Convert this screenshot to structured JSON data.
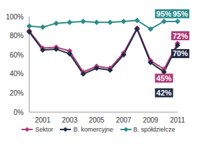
{
  "chart_data": {
    "type": "line",
    "categories": [
      null,
      "2001",
      null,
      "2003",
      null,
      "2005",
      null,
      "2007",
      null,
      "2009",
      null,
      "2011"
    ],
    "ylim": [
      0,
      100
    ],
    "yticks": [
      {
        "value": 0,
        "label": "0%"
      },
      {
        "value": 20,
        "label": "20%"
      },
      {
        "value": 40,
        "label": "40%"
      },
      {
        "value": 60,
        "label": "60%"
      },
      {
        "value": 80,
        "label": "80%"
      },
      {
        "value": 100,
        "label": "100%"
      }
    ],
    "grid": false,
    "legend": "bottom",
    "marker": "diamond",
    "series": [
      {
        "name": "Sektor",
        "color": "#b03a78",
        "values": [
          85,
          67,
          68,
          64,
          42,
          48,
          46,
          62,
          88,
          54,
          45,
          72
        ],
        "value_labels": [
          null,
          null,
          null,
          null,
          null,
          null,
          null,
          null,
          null,
          null,
          "45%",
          "72%"
        ]
      },
      {
        "name": "B. komercyjne",
        "color": "#1f2a44",
        "values": [
          84,
          65,
          66,
          61,
          40,
          46,
          44,
          60,
          87,
          52,
          42,
          70
        ],
        "value_labels": [
          null,
          null,
          null,
          null,
          null,
          null,
          null,
          null,
          null,
          null,
          "42%",
          "70%"
        ]
      },
      {
        "name": "B. spółdzielcze",
        "color": "#2a8c8c",
        "values": [
          90,
          89,
          93,
          94,
          95,
          94,
          94,
          95,
          96,
          87,
          95,
          95
        ],
        "value_labels": [
          null,
          null,
          null,
          null,
          null,
          null,
          null,
          null,
          null,
          null,
          "95%",
          "95%"
        ]
      }
    ]
  }
}
